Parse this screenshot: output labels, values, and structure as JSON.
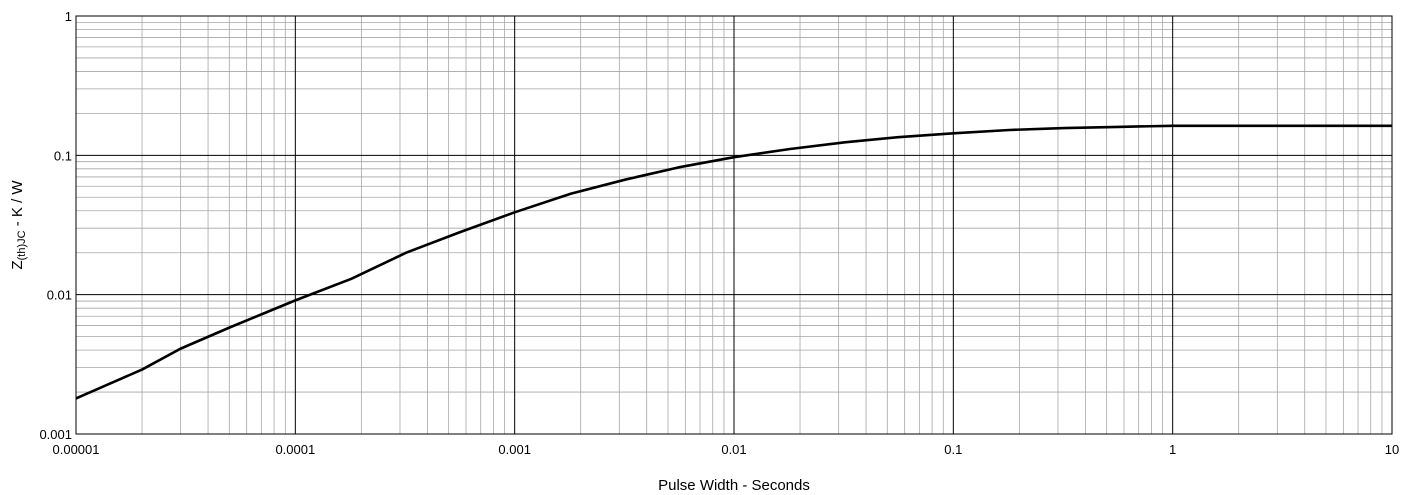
{
  "chart_data": {
    "type": "line",
    "x_scale": "log",
    "y_scale": "log",
    "xlim": [
      1e-05,
      10
    ],
    "ylim": [
      0.001,
      1
    ],
    "grid": true,
    "legend": "none",
    "xlabel": "Pulse Width - Seconds",
    "ylabel": {
      "prefix": "Z",
      "subscript": "(th)JC",
      "suffix": " - K / W"
    },
    "x_ticks": [
      "0.00001",
      "0.0001",
      "0.001",
      "0.01",
      "0.1",
      "1",
      "10"
    ],
    "y_ticks": [
      "0.001",
      "0.01",
      "0.1",
      "1"
    ],
    "series": [
      {
        "color": "#000000",
        "x": [
          1e-05,
          2e-05,
          3e-05,
          5e-05,
          0.0001,
          0.00018,
          0.00032,
          0.00056,
          0.001,
          0.0018,
          0.0032,
          0.0056,
          0.01,
          0.018,
          0.032,
          0.056,
          0.1,
          0.18,
          0.32,
          0.56,
          1,
          2,
          5,
          10
        ],
        "y": [
          0.0018,
          0.0029,
          0.0041,
          0.0058,
          0.0091,
          0.013,
          0.02,
          0.028,
          0.039,
          0.053,
          0.067,
          0.082,
          0.097,
          0.111,
          0.124,
          0.135,
          0.144,
          0.152,
          0.157,
          0.16,
          0.163,
          0.163,
          0.163,
          0.163
        ]
      }
    ]
  }
}
